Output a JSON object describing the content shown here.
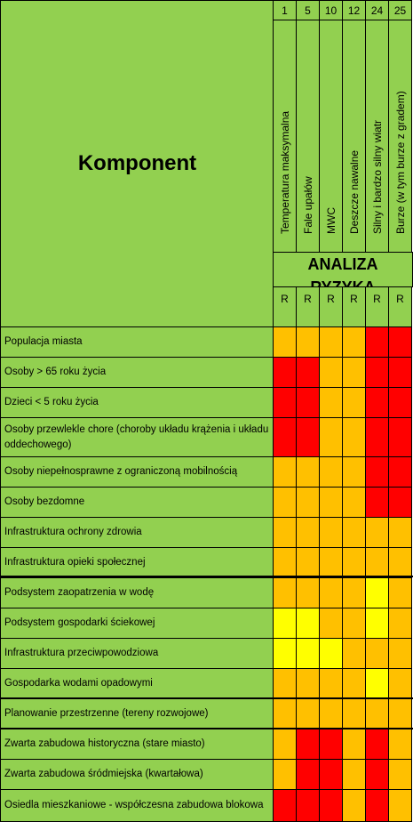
{
  "header": {
    "title": "Komponent",
    "analysis_title": "ANALIZA RYZYKA",
    "columns": [
      {
        "number": "1",
        "label": "Temperatura maksymalna",
        "sub": "R"
      },
      {
        "number": "5",
        "label": "Fale upałów",
        "sub": "R"
      },
      {
        "number": "10",
        "label": "MWC",
        "sub": "R"
      },
      {
        "number": "12",
        "label": "Deszcze nawalne",
        "sub": "R"
      },
      {
        "number": "24",
        "label": "Silny i bardzo silny wiatr",
        "sub": "R"
      },
      {
        "number": "25",
        "label": "Burze (w tym burze z gradem)",
        "sub": "R"
      }
    ]
  },
  "colors": {
    "background": "#92d050",
    "R": "#ff0000",
    "O": "#ffc000",
    "Y": "#ffff00",
    "grid": "#000000"
  },
  "rows": [
    {
      "label": "Populacja miasta",
      "risk": [
        "O",
        "O",
        "O",
        "O",
        "R",
        "R"
      ]
    },
    {
      "label": "Osoby > 65 roku życia",
      "risk": [
        "R",
        "R",
        "O",
        "O",
        "R",
        "R"
      ]
    },
    {
      "label": "Dzieci < 5 roku życia",
      "risk": [
        "R",
        "R",
        "O",
        "O",
        "R",
        "R"
      ]
    },
    {
      "label": "Osoby przewlekle chore (choroby układu krążenia i układu oddechowego)",
      "risk": [
        "R",
        "R",
        "O",
        "O",
        "R",
        "R"
      ]
    },
    {
      "label": "Osoby niepełnosprawne z ograniczoną mobilnością",
      "risk": [
        "O",
        "O",
        "O",
        "O",
        "R",
        "R"
      ]
    },
    {
      "label": "Osoby bezdomne",
      "risk": [
        "O",
        "O",
        "O",
        "O",
        "R",
        "R"
      ]
    },
    {
      "label": "Infrastruktura ochrony zdrowia",
      "risk": [
        "O",
        "O",
        "O",
        "O",
        "O",
        "O"
      ]
    },
    {
      "label": "Infrastruktura opieki społecznej",
      "risk": [
        "O",
        "O",
        "O",
        "O",
        "O",
        "O"
      ]
    },
    {
      "label": "Podsystem zaopatrzenia w wodę",
      "risk": [
        "O",
        "O",
        "O",
        "O",
        "Y",
        "O"
      ]
    },
    {
      "label": "Podsystem gospodarki ściekowej",
      "risk": [
        "Y",
        "Y",
        "O",
        "O",
        "Y",
        "O"
      ]
    },
    {
      "label": "Infrastruktura przeciwpowodziowa",
      "risk": [
        "Y",
        "Y",
        "Y",
        "O",
        "O",
        "O"
      ]
    },
    {
      "label": "Gospodarka wodami opadowymi",
      "risk": [
        "O",
        "O",
        "O",
        "O",
        "Y",
        "O"
      ]
    },
    {
      "label": "Planowanie przestrzenne (tereny rozwojowe)",
      "risk": [
        "O",
        "O",
        "O",
        "O",
        "O",
        "O"
      ]
    },
    {
      "label": "Zwarta zabudowa historyczna (stare miasto)",
      "risk": [
        "O",
        "R",
        "R",
        "O",
        "R",
        "O"
      ]
    },
    {
      "label": "Zwarta zabudowa śródmiejska (kwartałowa)",
      "risk": [
        "O",
        "R",
        "R",
        "O",
        "R",
        "O"
      ]
    },
    {
      "label": "Osiedla mieszkaniowe - współczesna zabudowa blokowa",
      "risk": [
        "R",
        "R",
        "R",
        "O",
        "R",
        "O"
      ]
    }
  ]
}
